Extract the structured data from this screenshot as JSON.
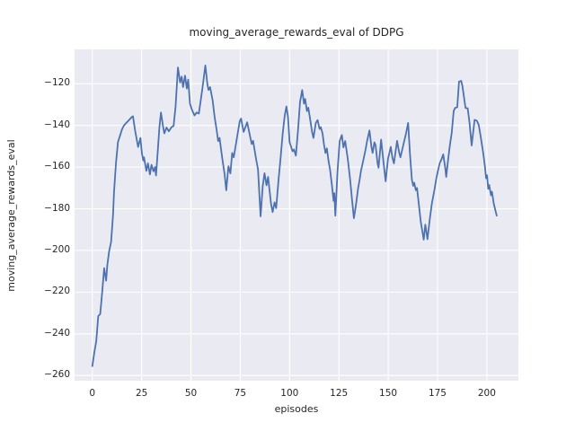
{
  "figure": {
    "title": "moving_average_rewards_eval of DDPG",
    "xlabel": "episodes",
    "ylabel": "moving_average_rewards_eval"
  },
  "chart_data": {
    "type": "line",
    "title": "moving_average_rewards_eval of DDPG",
    "xlabel": "episodes",
    "ylabel": "moving_average_rewards_eval",
    "xlim": [
      -9,
      216
    ],
    "ylim": [
      -262.5,
      -103.5
    ],
    "x_ticks": [
      0,
      25,
      50,
      75,
      100,
      125,
      150,
      175,
      200
    ],
    "y_ticks": [
      -260,
      -240,
      -220,
      -200,
      -180,
      -160,
      -140,
      -120
    ],
    "grid": true,
    "legend_position": "none",
    "style": {
      "figure_bg": "#ffffff",
      "axes_bg": "#eaeaf2",
      "grid_color": "#ffffff",
      "line_color": "#4c72b0",
      "text_color": "#262626",
      "line_width": 1.8
    },
    "series": [
      {
        "name": "moving_average_rewards_eval",
        "points": [
          [
            0,
            -255.5
          ],
          [
            1,
            -249
          ],
          [
            2,
            -243.5
          ],
          [
            3,
            -231.5
          ],
          [
            4,
            -230.5
          ],
          [
            5,
            -220
          ],
          [
            6,
            -208.5
          ],
          [
            7,
            -214.5
          ],
          [
            7.6,
            -207
          ],
          [
            8.5,
            -200.5
          ],
          [
            9.5,
            -196
          ],
          [
            10.5,
            -183
          ],
          [
            11,
            -172
          ],
          [
            12,
            -158
          ],
          [
            13,
            -148
          ],
          [
            14,
            -145
          ],
          [
            15,
            -142
          ],
          [
            16,
            -140
          ],
          [
            17,
            -139
          ],
          [
            18,
            -138
          ],
          [
            19,
            -137
          ],
          [
            20,
            -136
          ],
          [
            20.6,
            -135.6
          ],
          [
            21.7,
            -142.5
          ],
          [
            23.2,
            -150.3
          ],
          [
            24.4,
            -146
          ],
          [
            25.1,
            -153.2
          ],
          [
            25.8,
            -156.8
          ],
          [
            26.2,
            -155.3
          ],
          [
            27.4,
            -161.8
          ],
          [
            28.2,
            -158.2
          ],
          [
            29.2,
            -163.5
          ],
          [
            30,
            -158.9
          ],
          [
            31,
            -162
          ],
          [
            31.8,
            -160
          ],
          [
            32.3,
            -164
          ],
          [
            33.2,
            -152
          ],
          [
            34,
            -141
          ],
          [
            34.8,
            -133.8
          ],
          [
            35.8,
            -140.2
          ],
          [
            36.5,
            -143.8
          ],
          [
            37.6,
            -141
          ],
          [
            38.8,
            -142.8
          ],
          [
            40,
            -141
          ],
          [
            41.2,
            -140.2
          ],
          [
            42.2,
            -131
          ],
          [
            43.4,
            -112.2
          ],
          [
            44.5,
            -119.4
          ],
          [
            45.3,
            -116.6
          ],
          [
            46,
            -121.6
          ],
          [
            47,
            -116.1
          ],
          [
            47.9,
            -122.3
          ],
          [
            48.6,
            -118
          ],
          [
            49.5,
            -129.5
          ],
          [
            50.5,
            -132.5
          ],
          [
            51.8,
            -135.2
          ],
          [
            52.9,
            -133.8
          ],
          [
            54,
            -134.3
          ],
          [
            55.7,
            -123
          ],
          [
            57.3,
            -111.2
          ],
          [
            58.3,
            -120
          ],
          [
            58.9,
            -123
          ],
          [
            59.7,
            -121.6
          ],
          [
            61,
            -128
          ],
          [
            62,
            -136
          ],
          [
            63,
            -142
          ],
          [
            63.8,
            -147.5
          ],
          [
            64.5,
            -146
          ],
          [
            65.9,
            -156
          ],
          [
            67,
            -163
          ],
          [
            67.9,
            -171.1
          ],
          [
            69,
            -159.6
          ],
          [
            70,
            -163
          ],
          [
            70.9,
            -153.2
          ],
          [
            71.7,
            -155.3
          ],
          [
            73.2,
            -146.7
          ],
          [
            74.7,
            -138.1
          ],
          [
            75.4,
            -136.7
          ],
          [
            76.7,
            -143.1
          ],
          [
            78.5,
            -138.5
          ],
          [
            80,
            -145.3
          ],
          [
            80.8,
            -148.9
          ],
          [
            81.5,
            -147.4
          ],
          [
            83,
            -156
          ],
          [
            84,
            -161.1
          ],
          [
            85.3,
            -183.6
          ],
          [
            86.4,
            -169
          ],
          [
            87.3,
            -162.9
          ],
          [
            88.3,
            -168.7
          ],
          [
            89.1,
            -164.7
          ],
          [
            90.6,
            -177.6
          ],
          [
            91.4,
            -181.6
          ],
          [
            92.4,
            -176.9
          ],
          [
            93.2,
            -179.7
          ],
          [
            94.4,
            -166.1
          ],
          [
            95.5,
            -155
          ],
          [
            96.5,
            -144
          ],
          [
            97.5,
            -135.5
          ],
          [
            98.4,
            -130.9
          ],
          [
            99.2,
            -136
          ],
          [
            100,
            -148
          ],
          [
            101.5,
            -152.4
          ],
          [
            102.2,
            -151.5
          ],
          [
            103.2,
            -154.5
          ],
          [
            104.3,
            -142
          ],
          [
            105.3,
            -128.8
          ],
          [
            106.4,
            -123
          ],
          [
            107.3,
            -129.5
          ],
          [
            107.9,
            -127.3
          ],
          [
            108.8,
            -133.1
          ],
          [
            109.5,
            -131.5
          ],
          [
            110.6,
            -138.1
          ],
          [
            111.4,
            -143.1
          ],
          [
            112.1,
            -146
          ],
          [
            113.3,
            -138.8
          ],
          [
            114.2,
            -137.4
          ],
          [
            115.2,
            -141.7
          ],
          [
            115.8,
            -140.8
          ],
          [
            116.7,
            -143.8
          ],
          [
            117.4,
            -148.9
          ],
          [
            118.2,
            -153.2
          ],
          [
            118.9,
            -151
          ],
          [
            119.7,
            -156.8
          ],
          [
            120.5,
            -161.1
          ],
          [
            121.5,
            -169
          ],
          [
            122.3,
            -176.2
          ],
          [
            122.7,
            -172.5
          ],
          [
            123.2,
            -183.3
          ],
          [
            124.3,
            -162
          ],
          [
            125.4,
            -147.4
          ],
          [
            126.5,
            -144.6
          ],
          [
            127.3,
            -150.5
          ],
          [
            128.2,
            -147.5
          ],
          [
            129.5,
            -156
          ],
          [
            130.7,
            -166
          ],
          [
            131.7,
            -176
          ],
          [
            132.6,
            -184.5
          ],
          [
            133.6,
            -178.5
          ],
          [
            134.7,
            -170.4
          ],
          [
            135.5,
            -166.1
          ],
          [
            136.2,
            -161.8
          ],
          [
            137.2,
            -157.5
          ],
          [
            138.5,
            -151.7
          ],
          [
            139.3,
            -147.4
          ],
          [
            140.5,
            -142.4
          ],
          [
            141.5,
            -150.3
          ],
          [
            142.1,
            -153.2
          ],
          [
            143,
            -148.1
          ],
          [
            143.6,
            -149.5
          ],
          [
            144.6,
            -158.2
          ],
          [
            145.1,
            -160.3
          ],
          [
            146.4,
            -146.8
          ],
          [
            147.6,
            -157.5
          ],
          [
            148.7,
            -166.8
          ],
          [
            149.9,
            -156
          ],
          [
            151.3,
            -150.3
          ],
          [
            152.1,
            -155.3
          ],
          [
            152.9,
            -158.2
          ],
          [
            154.5,
            -147.4
          ],
          [
            155.6,
            -153.2
          ],
          [
            156.2,
            -155.3
          ],
          [
            157.5,
            -150
          ],
          [
            159,
            -144
          ],
          [
            160.1,
            -138.8
          ],
          [
            161,
            -153.2
          ],
          [
            162,
            -166.1
          ],
          [
            162.7,
            -169
          ],
          [
            163.2,
            -167.5
          ],
          [
            164,
            -171.1
          ],
          [
            164.6,
            -170
          ],
          [
            165.5,
            -177.6
          ],
          [
            166.5,
            -186.2
          ],
          [
            168,
            -194.8
          ],
          [
            168.8,
            -187.6
          ],
          [
            169.9,
            -194.6
          ],
          [
            171.1,
            -184.8
          ],
          [
            172.1,
            -177.6
          ],
          [
            173.4,
            -171.1
          ],
          [
            174.4,
            -165.4
          ],
          [
            175.2,
            -161.8
          ],
          [
            176.1,
            -158.2
          ],
          [
            177.1,
            -156
          ],
          [
            177.9,
            -153.9
          ],
          [
            179,
            -161
          ],
          [
            179.4,
            -164.7
          ],
          [
            180.3,
            -157
          ],
          [
            181.2,
            -150
          ],
          [
            182.2,
            -143.5
          ],
          [
            183.2,
            -133
          ],
          [
            184,
            -131.5
          ],
          [
            185,
            -131.3
          ],
          [
            185.9,
            -119
          ],
          [
            187,
            -118.6
          ],
          [
            187.6,
            -121
          ],
          [
            188.5,
            -127
          ],
          [
            189.2,
            -131.6
          ],
          [
            190.3,
            -131.8
          ],
          [
            191.2,
            -138.5
          ],
          [
            192.3,
            -149.6
          ],
          [
            193.8,
            -137.3
          ],
          [
            195,
            -137.8
          ],
          [
            195.9,
            -139.8
          ],
          [
            197,
            -146
          ],
          [
            198.2,
            -153.5
          ],
          [
            199.1,
            -160.3
          ],
          [
            199.6,
            -165.3
          ],
          [
            200.1,
            -163.9
          ],
          [
            200.7,
            -170.4
          ],
          [
            201.2,
            -168.6
          ],
          [
            202.1,
            -173.5
          ],
          [
            202.6,
            -171.8
          ],
          [
            203.5,
            -177.5
          ],
          [
            205,
            -183.3
          ]
        ]
      }
    ]
  }
}
